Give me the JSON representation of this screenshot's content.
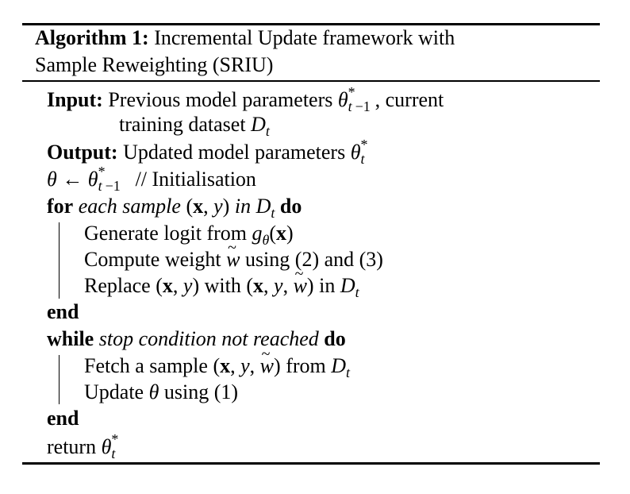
{
  "algorithm": {
    "label": "Algorithm 1:",
    "title_line1": "Incremental Update framework with",
    "title_line2": "Sample Reweighting (SRIU)"
  },
  "lines": {
    "input_kw": "Input:",
    "input_text1": "Previous model parameters",
    "input_text2": ", current",
    "input_text3": "training dataset",
    "output_kw": "Output:",
    "output_text": "Updated model parameters",
    "init_comment": "// Initialisation",
    "for_kw": "for",
    "for_cond": "each sample",
    "in_word": "in",
    "do_kw": "do",
    "gen_text": "Generate logit from",
    "compute_text1": "Compute weight",
    "compute_text2": "using (2) and (3)",
    "replace_text1": "Replace",
    "replace_text2": "with",
    "replace_text3": "in",
    "end_kw": "end",
    "while_kw": "while",
    "while_cond": "stop condition not reached",
    "fetch_text1": "Fetch a sample",
    "fetch_text2": "from",
    "update_text1": "Update",
    "update_text2": "using (1)",
    "return_text": "return"
  }
}
